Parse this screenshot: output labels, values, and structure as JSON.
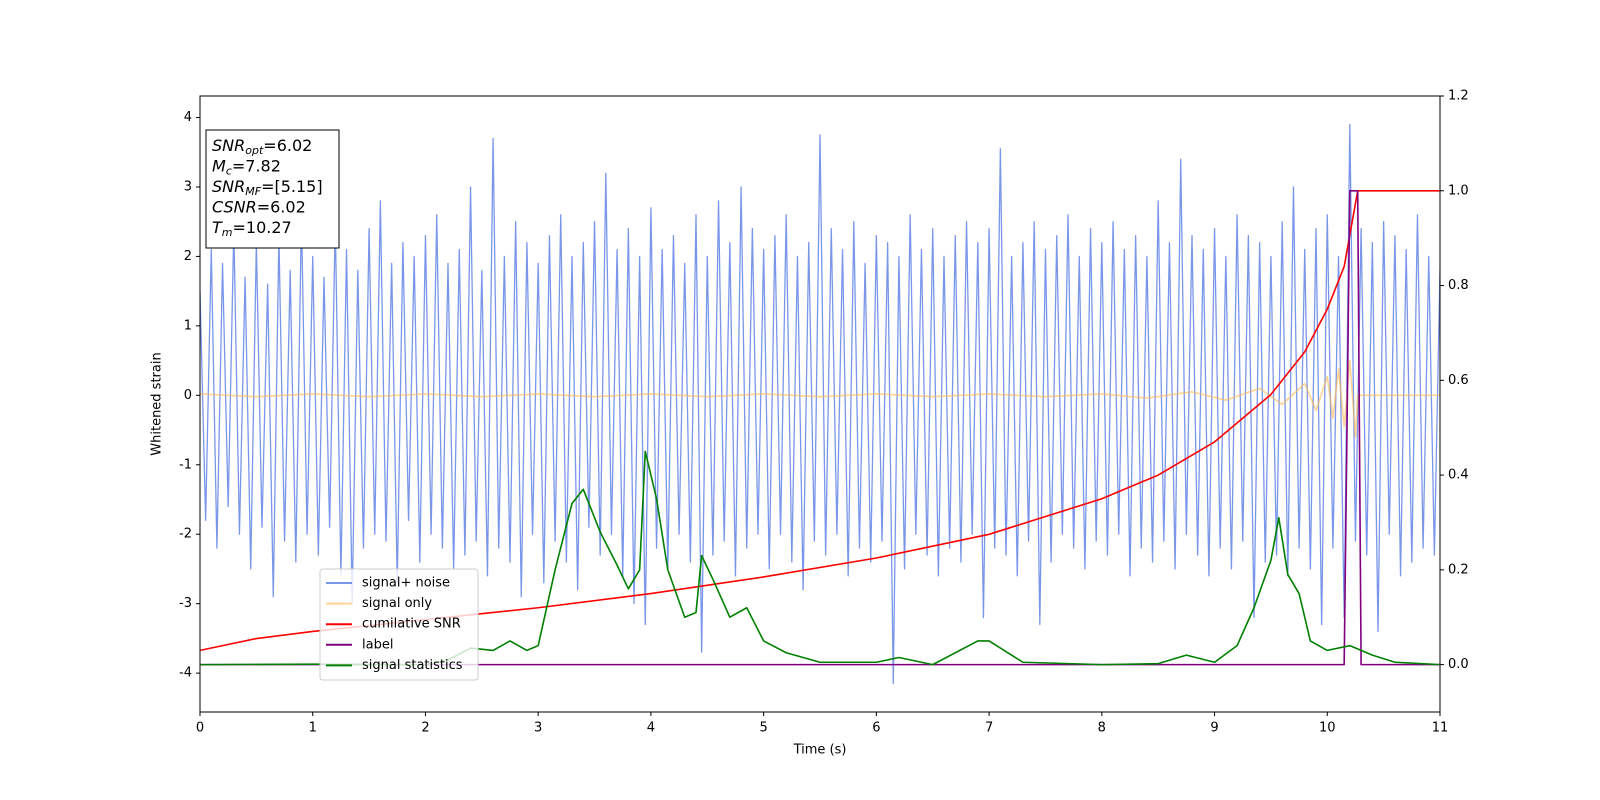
{
  "chart_data": {
    "type": "line",
    "xlabel": "Time (s)",
    "ylabel": "Whitened strain",
    "xlim": [
      0,
      11
    ],
    "xticks": [
      0,
      1,
      2,
      3,
      4,
      5,
      6,
      7,
      8,
      9,
      10,
      11
    ],
    "ylim": [
      -4.56,
      4.31
    ],
    "yticks": [
      -4,
      -3,
      -2,
      -1,
      0,
      1,
      2,
      3,
      4
    ],
    "y2lim": [
      -0.1,
      1.2
    ],
    "y2ticks": [
      {
        "value": 0,
        "label": "0.0"
      },
      0.2,
      0.4,
      0.6,
      0.8,
      {
        "value": 1,
        "label": "1.0"
      },
      1.2
    ],
    "legend": "lower left",
    "annotation": [
      {
        "symbol": "SNR",
        "subscript": "opt",
        "text": "=6.02"
      },
      {
        "symbol": "M",
        "subscript": "c",
        "text": "=7.82"
      },
      {
        "symbol": "SNR",
        "subscript": "MF",
        "text": "=[5.15]"
      },
      {
        "symbol": "CSNR",
        "subscript": "",
        "text": "=6.02"
      },
      {
        "symbol": "T",
        "subscript": "m",
        "text": "=10.27"
      }
    ],
    "series": [
      {
        "name": "signal+ noise",
        "color": "#4169e1",
        "opacity": 0.7,
        "axis": "y",
        "x": [
          0,
          0.05,
          0.1,
          0.15,
          0.2,
          0.25,
          0.3,
          0.35,
          0.4,
          0.45,
          0.5,
          0.55,
          0.6,
          0.65,
          0.7,
          0.75,
          0.8,
          0.85,
          0.9,
          0.95,
          1,
          1.05,
          1.1,
          1.15,
          1.2,
          1.25,
          1.3,
          1.35,
          1.4,
          1.45,
          1.5,
          1.55,
          1.6,
          1.65,
          1.7,
          1.75,
          1.8,
          1.85,
          1.9,
          1.95,
          2,
          2.05,
          2.1,
          2.15,
          2.2,
          2.25,
          2.3,
          2.35,
          2.4,
          2.45,
          2.5,
          2.55,
          2.6,
          2.65,
          2.7,
          2.75,
          2.8,
          2.85,
          2.9,
          2.95,
          3,
          3.05,
          3.1,
          3.15,
          3.2,
          3.25,
          3.3,
          3.35,
          3.4,
          3.45,
          3.5,
          3.55,
          3.6,
          3.65,
          3.7,
          3.75,
          3.8,
          3.85,
          3.9,
          3.95,
          4,
          4.05,
          4.1,
          4.15,
          4.2,
          4.25,
          4.3,
          4.35,
          4.4,
          4.45,
          4.5,
          4.55,
          4.6,
          4.65,
          4.7,
          4.75,
          4.8,
          4.85,
          4.9,
          4.95,
          5,
          5.05,
          5.1,
          5.15,
          5.2,
          5.25,
          5.3,
          5.35,
          5.4,
          5.45,
          5.5,
          5.55,
          5.6,
          5.65,
          5.7,
          5.75,
          5.8,
          5.85,
          5.9,
          5.95,
          6,
          6.05,
          6.1,
          6.15,
          6.2,
          6.25,
          6.3,
          6.35,
          6.4,
          6.45,
          6.5,
          6.55,
          6.6,
          6.65,
          6.7,
          6.75,
          6.8,
          6.85,
          6.9,
          6.95,
          7,
          7.05,
          7.1,
          7.15,
          7.2,
          7.25,
          7.3,
          7.35,
          7.4,
          7.45,
          7.5,
          7.55,
          7.6,
          7.65,
          7.7,
          7.75,
          7.8,
          7.85,
          7.9,
          7.95,
          8,
          8.05,
          8.1,
          8.15,
          8.2,
          8.25,
          8.3,
          8.35,
          8.4,
          8.45,
          8.5,
          8.55,
          8.6,
          8.65,
          8.7,
          8.75,
          8.8,
          8.85,
          8.9,
          8.95,
          9,
          9.05,
          9.1,
          9.15,
          9.2,
          9.25,
          9.3,
          9.35,
          9.4,
          9.45,
          9.5,
          9.55,
          9.6,
          9.65,
          9.7,
          9.75,
          9.8,
          9.85,
          9.9,
          9.95,
          10,
          10.05,
          10.1,
          10.15,
          10.2,
          10.25,
          10.3,
          10.35,
          10.4,
          10.45,
          10.5,
          10.55,
          10.6,
          10.65,
          10.7,
          10.75,
          10.8,
          10.85,
          10.9,
          10.95,
          11
        ],
        "values": [
          1.5,
          -1.8,
          2.1,
          -2.2,
          1.9,
          -1.6,
          2.4,
          -2.0,
          1.7,
          -2.5,
          2.2,
          -1.9,
          1.6,
          -2.9,
          2.3,
          -2.1,
          1.8,
          -2.4,
          2.6,
          -2.0,
          2.0,
          -2.3,
          1.7,
          -1.9,
          2.5,
          -2.6,
          2.1,
          -3.0,
          1.8,
          -2.2,
          2.4,
          -2.0,
          2.8,
          -2.1,
          1.9,
          -2.7,
          2.2,
          -1.8,
          2.0,
          -2.4,
          2.3,
          -2.0,
          2.6,
          -2.2,
          1.9,
          -2.5,
          2.1,
          -2.3,
          3.0,
          -2.1,
          1.8,
          -2.6,
          3.7,
          -2.2,
          2.0,
          -2.4,
          2.5,
          -2.9,
          2.2,
          -2.0,
          1.9,
          -2.7,
          2.3,
          -2.1,
          2.6,
          -2.4,
          2.0,
          -2.8,
          2.2,
          -1.9,
          2.5,
          -2.3,
          3.2,
          -2.0,
          2.1,
          -2.6,
          2.4,
          -3.0,
          2.0,
          -3.3,
          2.7,
          -2.2,
          2.1,
          -2.5,
          2.3,
          -2.0,
          1.9,
          -2.4,
          2.6,
          -3.7,
          2.0,
          -2.3,
          2.8,
          -2.1,
          2.2,
          -2.6,
          3.0,
          -2.2,
          2.4,
          -2.0,
          2.1,
          -2.5,
          2.3,
          -2.0,
          2.6,
          -2.4,
          2.0,
          -2.8,
          2.2,
          -2.1,
          3.75,
          -2.3,
          2.4,
          -2.0,
          2.1,
          -2.6,
          2.5,
          -2.2,
          1.9,
          -2.4,
          2.3,
          -2.1,
          2.2,
          -4.15,
          2.0,
          -2.5,
          2.6,
          -2.0,
          2.1,
          -2.3,
          2.4,
          -2.6,
          2.0,
          -2.2,
          2.3,
          -2.4,
          2.5,
          -2.0,
          2.2,
          -3.2,
          2.4,
          -2.2,
          3.55,
          -2.3,
          2.0,
          -2.6,
          2.2,
          -2.1,
          2.5,
          -3.3,
          2.1,
          -2.4,
          2.3,
          -2.0,
          2.6,
          -2.2,
          2.0,
          -2.5,
          2.4,
          -2.1,
          2.2,
          -2.3,
          2.5,
          -2.0,
          2.1,
          -2.6,
          2.3,
          -2.2,
          2.0,
          -2.4,
          2.8,
          -2.1,
          2.2,
          -2.5,
          3.4,
          -2.0,
          2.3,
          -2.3,
          2.1,
          -2.6,
          2.4,
          -2.2,
          2.0,
          -2.5,
          2.6,
          -2.1,
          2.3,
          -3.2,
          2.2,
          -2.4,
          2.0,
          -2.3,
          2.5,
          -2.6,
          3.0,
          -2.2,
          2.1,
          -2.5,
          2.4,
          -3.3,
          2.6,
          -2.2,
          2.0,
          -3.2,
          3.9,
          -2.1,
          2.4,
          -2.3,
          2.2,
          -3.4,
          2.5,
          -2.0,
          2.3,
          -2.6,
          2.1,
          -2.4,
          2.6,
          -2.2,
          2.0,
          -2.3,
          1.8
        ]
      },
      {
        "name": "signal only",
        "color": "#ffb84d",
        "opacity": 0.6,
        "axis": "y",
        "x": [
          0,
          0.5,
          1,
          1.5,
          2,
          2.5,
          3,
          3.5,
          4,
          4.5,
          5,
          5.5,
          6,
          6.5,
          7,
          7.5,
          8,
          8.4,
          8.8,
          9.1,
          9.4,
          9.6,
          9.8,
          9.9,
          10,
          10.05,
          10.1,
          10.15,
          10.2,
          10.25,
          10.27,
          10.3,
          11
        ],
        "values": [
          0.02,
          -0.02,
          0.02,
          -0.02,
          0.02,
          -0.02,
          0.02,
          -0.02,
          0.02,
          -0.02,
          0.02,
          -0.02,
          0.02,
          -0.02,
          0.02,
          -0.02,
          0.02,
          -0.04,
          0.05,
          -0.07,
          0.1,
          -0.13,
          0.17,
          -0.22,
          0.27,
          -0.33,
          0.38,
          -0.45,
          0.5,
          -0.6,
          0,
          0,
          0
        ]
      },
      {
        "name": "cumilative SNR",
        "color": "#ff0000",
        "opacity": 1,
        "axis": "y2",
        "x": [
          0,
          0.5,
          1,
          2,
          3,
          4,
          5,
          6,
          7,
          8,
          8.5,
          9,
          9.5,
          9.8,
          10,
          10.15,
          10.27,
          11
        ],
        "values": [
          0.03,
          0.055,
          0.07,
          0.095,
          0.12,
          0.15,
          0.185,
          0.225,
          0.275,
          0.35,
          0.4,
          0.47,
          0.57,
          0.66,
          0.75,
          0.84,
          1,
          1
        ]
      },
      {
        "name": "label",
        "color": "#800080",
        "opacity": 1,
        "axis": "y2",
        "x": [
          0,
          10.15,
          10.2,
          10.27,
          10.3,
          11
        ],
        "values": [
          0,
          0,
          1,
          1,
          0,
          0
        ]
      },
      {
        "name": "signal statistics",
        "color": "#008000",
        "opacity": 1,
        "axis": "y2",
        "x": [
          0,
          1,
          2,
          2.2,
          2.4,
          2.6,
          2.75,
          2.9,
          3,
          3.15,
          3.3,
          3.4,
          3.55,
          3.7,
          3.8,
          3.9,
          3.95,
          4.05,
          4.15,
          4.3,
          4.4,
          4.45,
          4.55,
          4.7,
          4.85,
          5,
          5.2,
          5.5,
          6,
          6.2,
          6.5,
          6.9,
          7,
          7.1,
          7.3,
          8,
          8.5,
          8.75,
          9,
          9.2,
          9.35,
          9.5,
          9.57,
          9.65,
          9.75,
          9.85,
          10,
          10.2,
          10.4,
          10.6,
          11
        ],
        "values": [
          0,
          0.001,
          0,
          0.01,
          0.035,
          0.03,
          0.05,
          0.03,
          0.04,
          0.2,
          0.34,
          0.37,
          0.28,
          0.21,
          0.16,
          0.2,
          0.45,
          0.35,
          0.2,
          0.1,
          0.11,
          0.23,
          0.18,
          0.1,
          0.12,
          0.05,
          0.025,
          0.005,
          0.005,
          0.015,
          0,
          0.05,
          0.05,
          0.035,
          0.005,
          0,
          0.002,
          0.02,
          0.005,
          0.04,
          0.12,
          0.22,
          0.31,
          0.19,
          0.15,
          0.05,
          0.03,
          0.04,
          0.02,
          0.005,
          0
        ]
      }
    ]
  }
}
